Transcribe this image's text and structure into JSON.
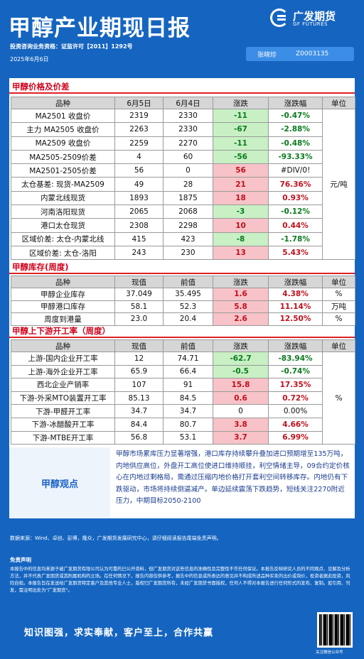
{
  "header": {
    "title": "甲醇产业期现日报",
    "logo_cn": "广发期货",
    "logo_en": "GF FUTURES",
    "license": "投资咨询业务资格：证监许可【2011】1292号",
    "date": "2025年6月6日",
    "analyst_name": "张晓珍",
    "analyst_id": "Z0003135"
  },
  "prices": {
    "section_title": "甲醇价格及价差",
    "headers": [
      "品种",
      "6月5日",
      "6月4日",
      "涨跌",
      "涨跌幅",
      "单位"
    ],
    "unit": "元/吨",
    "rows": [
      {
        "name": "MA2501 收盘价",
        "d1": "2319",
        "d2": "2330",
        "chg": "-11",
        "pct": "-0.47%",
        "cls": "g"
      },
      {
        "name": "主力 MA2505 收盘价",
        "d1": "2263",
        "d2": "2330",
        "chg": "-67",
        "pct": "-2.88%",
        "cls": "g"
      },
      {
        "name": "MA2509 收盘价",
        "d1": "2259",
        "d2": "2270",
        "chg": "-11",
        "pct": "-0.48%",
        "cls": "g"
      },
      {
        "name": "MA2505-2509价差",
        "d1": "4",
        "d2": "60",
        "chg": "-56",
        "pct": "-93.33%",
        "cls": "g"
      },
      {
        "name": "MA2501-2505价差",
        "d1": "56",
        "d2": "0",
        "chg": "56",
        "pct": "#DIV/0!",
        "cls": "r",
        "pctcls": "z"
      },
      {
        "name": "太仓基差: 现货-MA2509",
        "d1": "49",
        "d2": "28",
        "chg": "21",
        "pct": "76.36%",
        "cls": "r"
      },
      {
        "name": "内蒙北线现货",
        "d1": "1893",
        "d2": "1875",
        "chg": "18",
        "pct": "0.93%",
        "cls": "r"
      },
      {
        "name": "河南洛阳现货",
        "d1": "2065",
        "d2": "2068",
        "chg": "-3",
        "pct": "-0.12%",
        "cls": "g"
      },
      {
        "name": "港口太仓现货",
        "d1": "2308",
        "d2": "2298",
        "chg": "10",
        "pct": "0.44%",
        "cls": "r"
      },
      {
        "name": "区域价差: 太仓-内蒙北线",
        "d1": "415",
        "d2": "423",
        "chg": "-8",
        "pct": "-1.78%",
        "cls": "g"
      },
      {
        "name": "区域价差: 太仓-洛阳",
        "d1": "243",
        "d2": "230",
        "chg": "13",
        "pct": "5.43%",
        "cls": "r"
      }
    ]
  },
  "inventory": {
    "section_title": "甲醇库存(周度)",
    "headers": [
      "品种",
      "现值",
      "前值",
      "涨跌",
      "涨跌幅",
      "单位"
    ],
    "rows": [
      {
        "name": "甲醇企业库存",
        "d1": "37.049",
        "d2": "35.495",
        "chg": "1.6",
        "pct": "4.38%",
        "unit": "%",
        "cls": "r"
      },
      {
        "name": "甲醇港口库存",
        "d1": "58.1",
        "d2": "52.3",
        "chg": "5.8",
        "pct": "11.14%",
        "unit": "万吨",
        "cls": "r"
      },
      {
        "name": "周度到港量",
        "d1": "23.0",
        "d2": "20.4",
        "chg": "2.6",
        "pct": "12.50%",
        "unit": "%",
        "cls": "r"
      }
    ]
  },
  "operating": {
    "section_title": "甲醇上下游开工率（周度）",
    "headers": [
      "品种",
      "现值",
      "前值",
      "涨跌",
      "涨跌幅",
      "单位"
    ],
    "unit": "%",
    "rows": [
      {
        "name": "上游-国内企业开工率",
        "d1": "12",
        "d2": "74.71",
        "chg": "-62.7",
        "pct": "-83.94%",
        "cls": "g"
      },
      {
        "name": "上游-海外企业开工率",
        "d1": "65.9",
        "d2": "66.4",
        "chg": "-0.5",
        "pct": "-0.74%",
        "cls": "g"
      },
      {
        "name": "西北企业产销率",
        "d1": "107",
        "d2": "91",
        "chg": "15.8",
        "pct": "17.35%",
        "cls": "r"
      },
      {
        "name": "下游-外采MTO装置开工率",
        "d1": "85.13",
        "d2": "84.5",
        "chg": "0.6",
        "pct": "0.72%",
        "cls": "r"
      },
      {
        "name": "下游-甲醛开工率",
        "d1": "34.7",
        "d2": "34.7",
        "chg": "0",
        "pct": "0.00%",
        "cls": "z"
      },
      {
        "name": "下游-冰醋酸开工率",
        "d1": "84.4",
        "d2": "80.7",
        "chg": "3.8",
        "pct": "4.66%",
        "cls": "r"
      },
      {
        "name": "下游-MTBE开工率",
        "d1": "56.8",
        "d2": "53.1",
        "chg": "3.7",
        "pct": "6.99%",
        "cls": "r"
      }
    ]
  },
  "view": {
    "label": "甲醇观点",
    "text": "甲醇市场累库压力显著增强，港口库存持续攀升叠加进口预期增至135万吨，内地供应高位，外盘开工高位使进口维持顺挂，利空情绪主导，09合约定价核心在内地过剩格局，需通过压缩内地价格打开套利空间转移库存。内地仍有下跌驱动，市场将持续倒逼减产。单边延续震荡下跌趋势，短线关注2270附近压力，中期目标2050-2100"
  },
  "footer": {
    "source": "数据来源：Wind、卓创、彭博，隆众，广发期货发展研究中心，请仔细阅读报告尾端免责声明。",
    "disclaimer_title": "免责声明",
    "disclaimer_text": "本报告中的信息均来源于被广发期货有限公司认为可靠的已公开资料，但广发期货对这些信息的准确性及完整性不作任何保证。本报告反映研究人员的不同观点、见解及分析方法，并不代表广发期货或其附属机构的立场。在任何情况下，报告内容仅供参考，报告中的信息或所表达的意见并不构成所述品种买卖的出价或询价，投资者据此投资，风险自担。本报告旨在发送给广发期货特定客户及其他专业人士，版权归广发期货所有，未经广发期货书面授权，任何人不得对本报告进行任何形式的发布、复制。如引用、刊发，需注明出处为\"广发期货\"。",
    "slogan": "知识图强，求实奉献，客户至上，合作共赢",
    "qr_caption": "关注微信公众号"
  }
}
